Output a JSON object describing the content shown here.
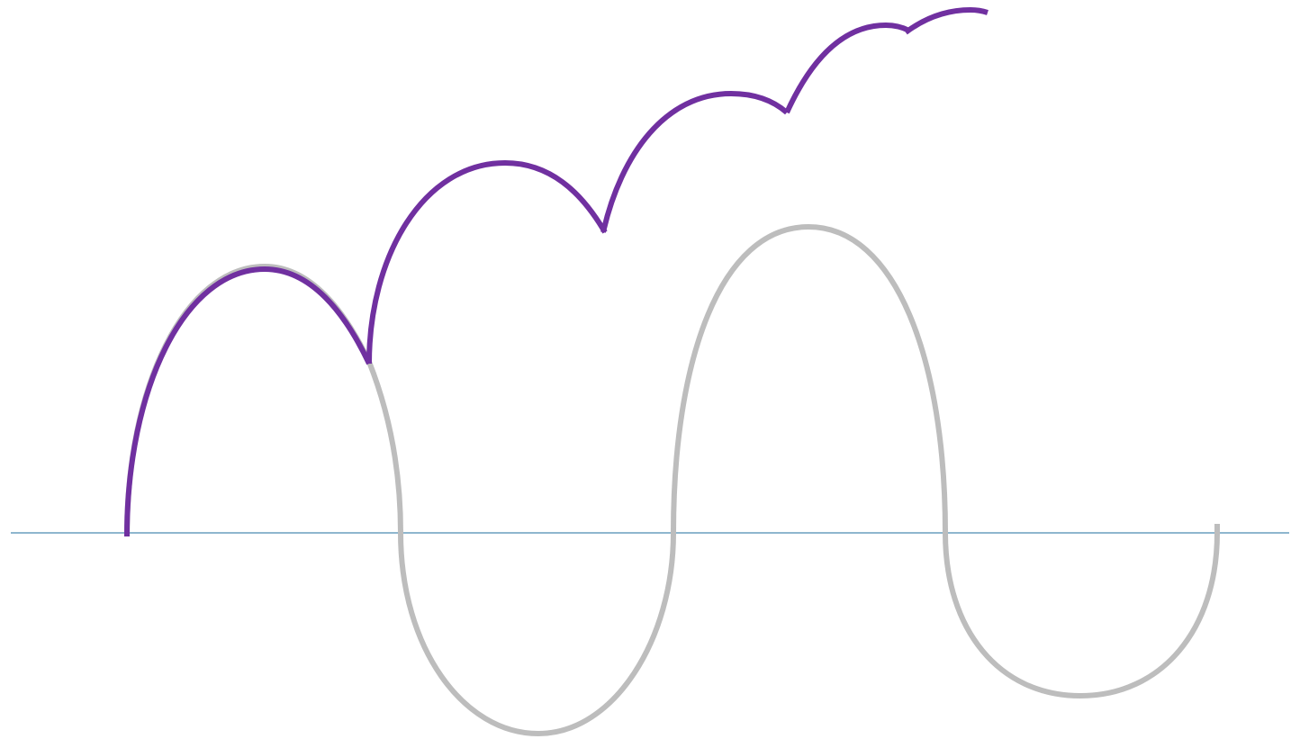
{
  "diagram": {
    "colors": {
      "background": "#ffffff",
      "baseline": "#4a8ab0",
      "original_wave": "#bdbdbd",
      "rectified_arcs": "#7030a0"
    },
    "elements": [
      "baseline",
      "original-wave",
      "rectified-arcs"
    ]
  }
}
